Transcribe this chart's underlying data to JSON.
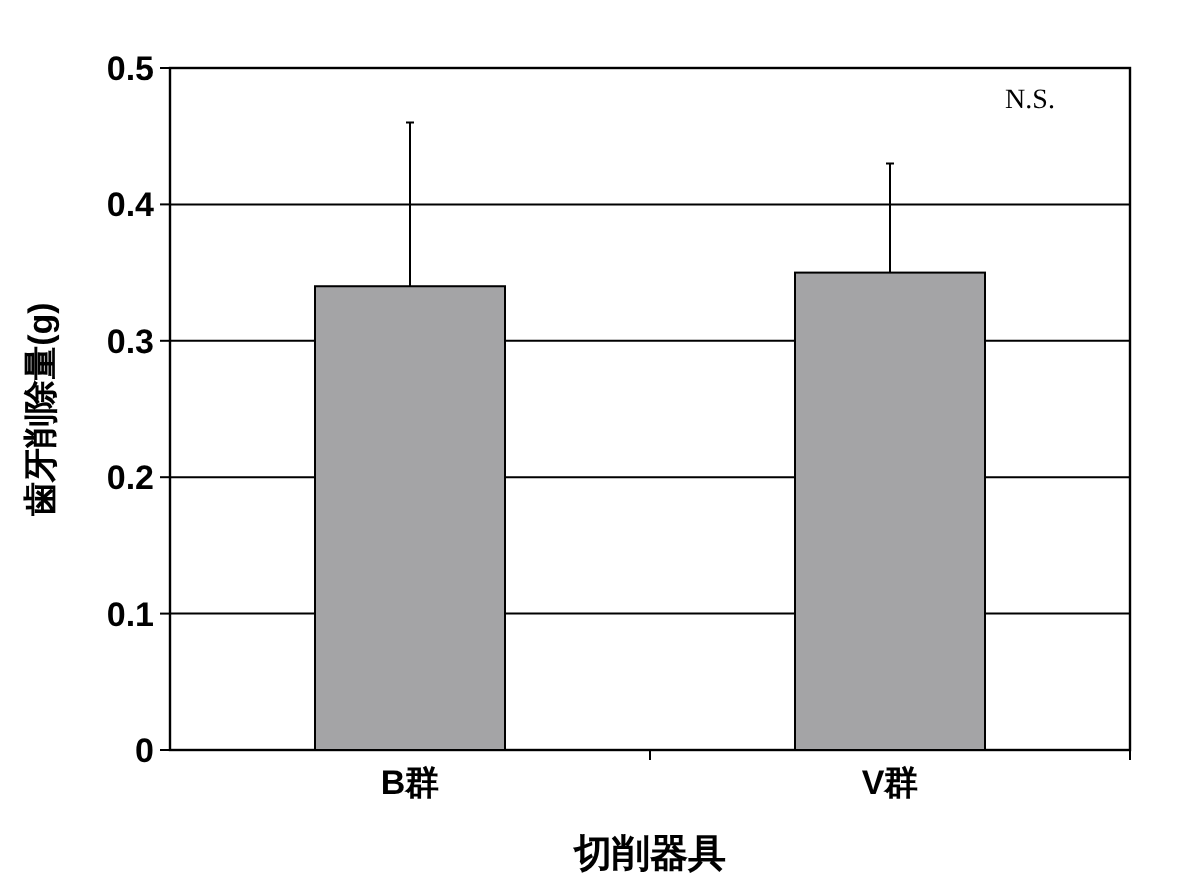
{
  "chart_data": {
    "type": "bar",
    "ylabel": "歯牙削除量(g)",
    "xlabel": "切削器具",
    "categories": [
      "B群",
      "V群"
    ],
    "values": [
      0.34,
      0.35
    ],
    "errors": [
      [
        0.34,
        0.46
      ],
      [
        0.35,
        0.43
      ]
    ],
    "color": "#a4a4a6",
    "ylim": [
      0,
      0.5
    ],
    "yticks": [
      0,
      0.1,
      0.2,
      0.3,
      0.4,
      0.5
    ],
    "grid": "y",
    "annotations": [
      "N.S."
    ]
  }
}
